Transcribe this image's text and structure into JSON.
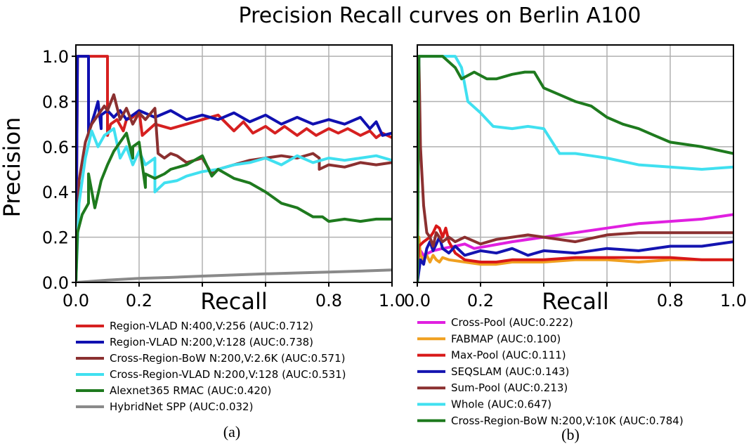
{
  "figure_title": "Precision Recall curves on Berlin A100",
  "colors": {
    "grid": "#b0b0b0",
    "axis": "#000000"
  },
  "chart_data": [
    {
      "type": "line",
      "panel_label": "(a)",
      "xlabel": "Recall",
      "ylabel": "Precision",
      "xlim": [
        0,
        1
      ],
      "ylim": [
        0,
        1.05
      ],
      "x_ticks": [
        0.0,
        0.2,
        0.4,
        0.6,
        0.8,
        1.0
      ],
      "x_tick_labels": [
        "0.0",
        "0.2",
        "",
        "",
        "0.8",
        "1.0"
      ],
      "y_ticks": [
        0.0,
        0.2,
        0.4,
        0.6,
        0.8,
        1.0
      ],
      "y_tick_labels": [
        "0.0",
        "0.2",
        "0.4",
        "0.6",
        "0.8",
        "1.0"
      ],
      "grid": true,
      "legend_position": "below",
      "series": [
        {
          "name": "Region-VLAD N:400,V:256 (AUC:0.712)",
          "color": "#d62020",
          "x": [
            0,
            0.005,
            0.01,
            0.1,
            0.1,
            0.11,
            0.13,
            0.15,
            0.16,
            0.18,
            0.2,
            0.21,
            0.25,
            0.3,
            0.35,
            0.4,
            0.45,
            0.5,
            0.53,
            0.56,
            0.6,
            0.63,
            0.66,
            0.7,
            0.73,
            0.76,
            0.8,
            0.83,
            0.86,
            0.9,
            0.93,
            0.95,
            0.97,
            1.0
          ],
          "y": [
            0,
            1.0,
            1.0,
            1.0,
            0.65,
            0.7,
            0.72,
            0.67,
            0.72,
            0.73,
            0.76,
            0.65,
            0.7,
            0.68,
            0.7,
            0.72,
            0.74,
            0.67,
            0.71,
            0.66,
            0.69,
            0.66,
            0.69,
            0.65,
            0.68,
            0.65,
            0.68,
            0.66,
            0.68,
            0.65,
            0.67,
            0.64,
            0.66,
            0.64
          ]
        },
        {
          "name": "Region-VLAD N:200,V:128 (AUC:0.738)",
          "color": "#1010b0",
          "x": [
            0,
            0.005,
            0.01,
            0.04,
            0.04,
            0.06,
            0.07,
            0.08,
            0.08,
            0.1,
            0.12,
            0.14,
            0.16,
            0.2,
            0.25,
            0.3,
            0.35,
            0.4,
            0.45,
            0.5,
            0.55,
            0.6,
            0.65,
            0.7,
            0.75,
            0.8,
            0.85,
            0.9,
            0.93,
            0.95,
            0.97,
            1.0
          ],
          "y": [
            0,
            1.0,
            1.0,
            1.0,
            0.66,
            0.75,
            0.8,
            0.68,
            0.74,
            0.76,
            0.73,
            0.76,
            0.72,
            0.76,
            0.73,
            0.76,
            0.72,
            0.74,
            0.72,
            0.75,
            0.71,
            0.74,
            0.7,
            0.73,
            0.7,
            0.72,
            0.7,
            0.73,
            0.68,
            0.71,
            0.65,
            0.66
          ]
        },
        {
          "name": "Cross-Region-BoW N:200,V:2.6K (AUC:0.571)",
          "color": "#8b3030",
          "x": [
            0,
            0.01,
            0.03,
            0.05,
            0.07,
            0.09,
            0.1,
            0.12,
            0.14,
            0.16,
            0.18,
            0.2,
            0.22,
            0.25,
            0.26,
            0.28,
            0.3,
            0.32,
            0.35,
            0.4,
            0.43,
            0.45,
            0.5,
            0.55,
            0.6,
            0.65,
            0.7,
            0.75,
            0.77,
            0.77,
            0.8,
            0.85,
            0.9,
            0.95,
            1.0
          ],
          "y": [
            0,
            0.45,
            0.62,
            0.7,
            0.74,
            0.78,
            0.76,
            0.83,
            0.72,
            0.77,
            0.7,
            0.75,
            0.72,
            0.77,
            0.57,
            0.55,
            0.57,
            0.56,
            0.53,
            0.55,
            0.48,
            0.5,
            0.52,
            0.54,
            0.55,
            0.56,
            0.55,
            0.57,
            0.55,
            0.5,
            0.52,
            0.51,
            0.53,
            0.52,
            0.53
          ]
        },
        {
          "name": "Cross-Region-VLAD N:200,V:128 (AUC:0.531)",
          "color": "#40e0f0",
          "x": [
            0,
            0.01,
            0.03,
            0.05,
            0.07,
            0.09,
            0.12,
            0.14,
            0.16,
            0.18,
            0.2,
            0.22,
            0.25,
            0.25,
            0.28,
            0.32,
            0.35,
            0.4,
            0.45,
            0.5,
            0.55,
            0.6,
            0.65,
            0.7,
            0.75,
            0.8,
            0.85,
            0.9,
            0.95,
            1.0
          ],
          "y": [
            0,
            0.35,
            0.55,
            0.67,
            0.6,
            0.65,
            0.68,
            0.55,
            0.6,
            0.52,
            0.58,
            0.52,
            0.55,
            0.4,
            0.44,
            0.45,
            0.47,
            0.49,
            0.5,
            0.52,
            0.53,
            0.55,
            0.52,
            0.56,
            0.53,
            0.55,
            0.54,
            0.55,
            0.56,
            0.54
          ]
        },
        {
          "name": "Alexnet365 RMAC  (AUC:0.420)",
          "color": "#1e7a1e",
          "x": [
            0,
            0.005,
            0.02,
            0.04,
            0.04,
            0.06,
            0.08,
            0.1,
            0.12,
            0.14,
            0.16,
            0.18,
            0.18,
            0.2,
            0.22,
            0.22,
            0.25,
            0.28,
            0.3,
            0.35,
            0.4,
            0.43,
            0.45,
            0.5,
            0.55,
            0.6,
            0.65,
            0.7,
            0.75,
            0.78,
            0.8,
            0.85,
            0.9,
            0.95,
            1.0
          ],
          "y": [
            0,
            0.22,
            0.3,
            0.35,
            0.48,
            0.33,
            0.45,
            0.52,
            0.58,
            0.62,
            0.66,
            0.55,
            0.6,
            0.62,
            0.42,
            0.48,
            0.46,
            0.48,
            0.5,
            0.52,
            0.56,
            0.47,
            0.5,
            0.46,
            0.44,
            0.4,
            0.35,
            0.33,
            0.29,
            0.29,
            0.27,
            0.28,
            0.27,
            0.28,
            0.28
          ]
        },
        {
          "name": "HybridNet SPP (AUC:0.032)",
          "color": "#8a8a8a",
          "x": [
            0,
            0.1,
            0.2,
            0.3,
            0.4,
            0.5,
            0.6,
            0.7,
            0.8,
            0.9,
            1.0
          ],
          "y": [
            0,
            0.01,
            0.018,
            0.022,
            0.028,
            0.033,
            0.038,
            0.042,
            0.046,
            0.05,
            0.055
          ]
        }
      ]
    },
    {
      "type": "line",
      "panel_label": "(b)",
      "xlabel": "Recall",
      "ylabel": "",
      "xlim": [
        0,
        1
      ],
      "ylim": [
        0,
        1.05
      ],
      "x_ticks": [
        0.0,
        0.2,
        0.4,
        0.6,
        0.8,
        1.0
      ],
      "x_tick_labels": [
        "0.0",
        "0.2",
        "",
        "",
        "0.8",
        "1.0"
      ],
      "y_ticks": [
        0.0,
        0.2,
        0.4,
        0.6,
        0.8,
        1.0
      ],
      "y_tick_labels": [],
      "grid": true,
      "legend_position": "below",
      "series": [
        {
          "name": "Cross-Pool (AUC:0.222)",
          "color": "#e020e0",
          "x": [
            0,
            0.005,
            0.02,
            0.05,
            0.08,
            0.12,
            0.15,
            0.18,
            0.22,
            0.3,
            0.4,
            0.5,
            0.6,
            0.7,
            0.8,
            0.9,
            1.0
          ],
          "y": [
            0,
            0.15,
            0.12,
            0.14,
            0.15,
            0.16,
            0.17,
            0.15,
            0.16,
            0.18,
            0.2,
            0.22,
            0.24,
            0.26,
            0.27,
            0.28,
            0.3
          ]
        },
        {
          "name": "FABMAP (AUC:0.100)",
          "color": "#f0a020",
          "x": [
            0,
            0.005,
            0.01,
            0.02,
            0.03,
            0.04,
            0.05,
            0.06,
            0.07,
            0.08,
            0.1,
            0.15,
            0.2,
            0.25,
            0.3,
            0.4,
            0.5,
            0.6,
            0.7,
            0.8,
            0.9,
            1.0
          ],
          "y": [
            0,
            0.2,
            0.12,
            0.1,
            0.12,
            0.09,
            0.12,
            0.1,
            0.09,
            0.11,
            0.1,
            0.09,
            0.08,
            0.08,
            0.09,
            0.09,
            0.1,
            0.1,
            0.09,
            0.1,
            0.1,
            0.1
          ]
        },
        {
          "name": "Max-Pool (AUC:0.111)",
          "color": "#d81818",
          "x": [
            0,
            0.005,
            0.02,
            0.04,
            0.05,
            0.06,
            0.07,
            0.08,
            0.09,
            0.1,
            0.12,
            0.15,
            0.2,
            0.25,
            0.3,
            0.4,
            0.5,
            0.6,
            0.7,
            0.8,
            0.9,
            1.0
          ],
          "y": [
            0,
            0.16,
            0.18,
            0.2,
            0.22,
            0.25,
            0.24,
            0.2,
            0.24,
            0.18,
            0.13,
            0.1,
            0.09,
            0.09,
            0.1,
            0.1,
            0.11,
            0.11,
            0.11,
            0.11,
            0.1,
            0.1
          ]
        },
        {
          "name": "SEQSLAM (AUC:0.143)",
          "color": "#1414b0",
          "x": [
            0,
            0.005,
            0.01,
            0.02,
            0.03,
            0.04,
            0.05,
            0.06,
            0.07,
            0.08,
            0.1,
            0.12,
            0.15,
            0.2,
            0.25,
            0.3,
            0.35,
            0.4,
            0.5,
            0.6,
            0.7,
            0.8,
            0.9,
            1.0
          ],
          "y": [
            0,
            0.05,
            0.1,
            0.08,
            0.15,
            0.18,
            0.14,
            0.17,
            0.2,
            0.15,
            0.13,
            0.16,
            0.12,
            0.14,
            0.13,
            0.15,
            0.12,
            0.14,
            0.13,
            0.15,
            0.14,
            0.16,
            0.16,
            0.18
          ]
        },
        {
          "name": "Sum-Pool (AUC:0.213)",
          "color": "#8b3030",
          "x": [
            0,
            0.005,
            0.01,
            0.02,
            0.03,
            0.04,
            0.05,
            0.06,
            0.08,
            0.1,
            0.12,
            0.15,
            0.2,
            0.25,
            0.3,
            0.35,
            0.4,
            0.5,
            0.6,
            0.7,
            0.8,
            0.9,
            1.0
          ],
          "y": [
            0,
            1.0,
            0.6,
            0.34,
            0.22,
            0.2,
            0.16,
            0.22,
            0.18,
            0.2,
            0.18,
            0.2,
            0.17,
            0.19,
            0.2,
            0.21,
            0.2,
            0.18,
            0.21,
            0.22,
            0.22,
            0.22,
            0.22
          ]
        },
        {
          "name": "Whole (AUC:0.647)",
          "color": "#40e0f0",
          "x": [
            0,
            0.005,
            0.01,
            0.12,
            0.14,
            0.16,
            0.2,
            0.24,
            0.3,
            0.35,
            0.4,
            0.45,
            0.5,
            0.55,
            0.6,
            0.7,
            0.8,
            0.9,
            1.0
          ],
          "y": [
            0,
            1.0,
            1.0,
            1.0,
            0.95,
            0.8,
            0.75,
            0.69,
            0.68,
            0.69,
            0.68,
            0.57,
            0.57,
            0.56,
            0.55,
            0.52,
            0.51,
            0.5,
            0.51
          ]
        },
        {
          "name": "Cross-Region-BoW N:200,V:10K (AUC:0.784)",
          "color": "#1e7a1e",
          "x": [
            0,
            0.005,
            0.01,
            0.08,
            0.12,
            0.14,
            0.18,
            0.22,
            0.25,
            0.3,
            0.34,
            0.37,
            0.4,
            0.45,
            0.5,
            0.55,
            0.6,
            0.65,
            0.7,
            0.75,
            0.8,
            0.9,
            1.0
          ],
          "y": [
            0,
            1.0,
            1.0,
            1.0,
            0.95,
            0.9,
            0.93,
            0.9,
            0.9,
            0.92,
            0.93,
            0.93,
            0.86,
            0.83,
            0.8,
            0.78,
            0.73,
            0.7,
            0.68,
            0.65,
            0.62,
            0.6,
            0.57
          ]
        }
      ]
    }
  ]
}
